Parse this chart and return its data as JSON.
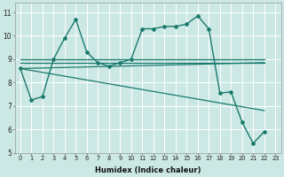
{
  "xlabel": "Humidex (Indice chaleur)",
  "background_color": "#cce8e4",
  "grid_color": "#ffffff",
  "line_color": "#1a7a6e",
  "xlim": [
    -0.5,
    23.5
  ],
  "ylim": [
    5.0,
    11.4
  ],
  "yticks": [
    5,
    6,
    7,
    8,
    9,
    10,
    11
  ],
  "xtick_labels": [
    "0",
    "1",
    "2",
    "3",
    "4",
    "5",
    "6",
    "7",
    "8",
    "9",
    "10",
    "11",
    "12",
    "13",
    "14",
    "15",
    "16",
    "17",
    "18",
    "19",
    "20",
    "21",
    "22",
    "23"
  ],
  "main_series": {
    "x": [
      0,
      1,
      2,
      3,
      4,
      5,
      6,
      7,
      8,
      9,
      10,
      11,
      12,
      13,
      14,
      15,
      16,
      17,
      18,
      19,
      20,
      21,
      22
    ],
    "y": [
      8.6,
      7.25,
      7.4,
      9.0,
      9.9,
      10.7,
      9.3,
      8.85,
      8.7,
      8.85,
      9.0,
      10.3,
      10.3,
      10.4,
      10.4,
      10.5,
      10.85,
      10.3,
      7.55,
      7.6,
      6.3,
      5.4,
      5.9
    ]
  },
  "straight_lines": [
    {
      "x": [
        0,
        22
      ],
      "y": [
        9.0,
        9.0
      ]
    },
    {
      "x": [
        0,
        22
      ],
      "y": [
        8.85,
        8.85
      ]
    },
    {
      "x": [
        0,
        22
      ],
      "y": [
        8.6,
        8.85
      ]
    },
    {
      "x": [
        0,
        22
      ],
      "y": [
        8.6,
        6.8
      ]
    }
  ]
}
